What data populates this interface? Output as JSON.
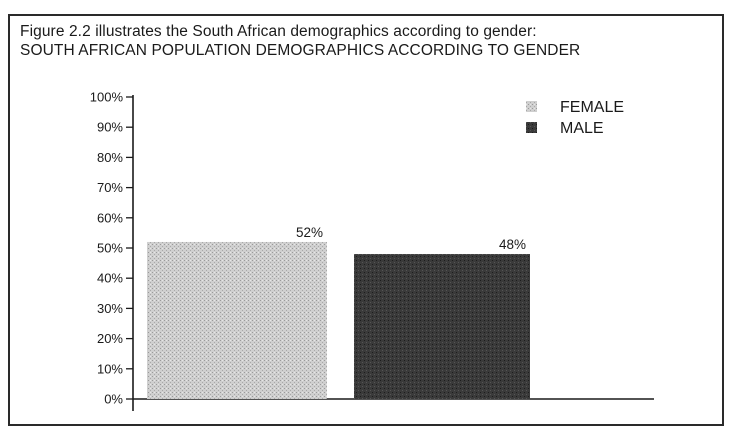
{
  "caption": {
    "line1": "Figure 2.2 illustrates the South African demographics according to gender:",
    "line2": "SOUTH AFRICAN POPULATION DEMOGRAPHICS ACCORDING TO GENDER"
  },
  "chart_data": {
    "type": "bar",
    "title": "SOUTH AFRICAN POPULATION DEMOGRAPHICS ACCORDING TO GENDER",
    "xlabel": "",
    "ylabel": "",
    "ylim": [
      0,
      100
    ],
    "yticks": [
      "0%",
      "10%",
      "20%",
      "30%",
      "40%",
      "50%",
      "60%",
      "70%",
      "80%",
      "90%",
      "100%"
    ],
    "grid": false,
    "legend_position": "top-right",
    "series": [
      {
        "name": "FEMALE",
        "value": 52,
        "label": "52%",
        "color": "#c4c4c4"
      },
      {
        "name": "MALE",
        "value": 48,
        "label": "48%",
        "color": "#3e3e3e"
      }
    ]
  }
}
